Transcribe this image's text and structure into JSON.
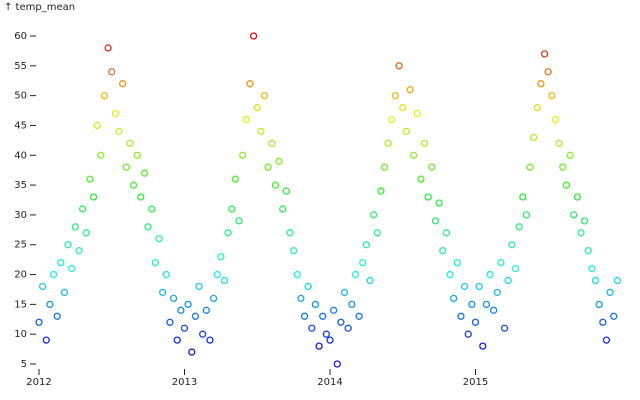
{
  "chart_data": {
    "type": "scatter",
    "title": "↑ temp_mean",
    "x": [
      2012,
      2012.025,
      2012.05,
      2012.075,
      2012.1,
      2012.125,
      2012.15,
      2012.175,
      2012.2,
      2012.225,
      2012.25,
      2012.275,
      2012.3,
      2012.325,
      2012.35,
      2012.375,
      2012.4,
      2012.425,
      2012.45,
      2012.475,
      2012.5,
      2012.525,
      2012.55,
      2012.575,
      2012.6,
      2012.625,
      2012.65,
      2012.675,
      2012.7,
      2012.725,
      2012.75,
      2012.775,
      2012.8,
      2012.825,
      2012.85,
      2012.875,
      2012.9,
      2012.925,
      2012.95,
      2012.975,
      2013,
      2013.025,
      2013.05,
      2013.075,
      2013.1,
      2013.125,
      2013.15,
      2013.175,
      2013.2,
      2013.225,
      2013.25,
      2013.275,
      2013.3,
      2013.325,
      2013.35,
      2013.375,
      2013.4,
      2013.425,
      2013.45,
      2013.475,
      2013.5,
      2013.525,
      2013.55,
      2013.575,
      2013.6,
      2013.625,
      2013.65,
      2013.675,
      2013.7,
      2013.725,
      2013.75,
      2013.775,
      2013.8,
      2013.825,
      2013.85,
      2013.875,
      2013.9,
      2013.925,
      2013.95,
      2013.975,
      2014,
      2014.025,
      2014.05,
      2014.075,
      2014.1,
      2014.125,
      2014.15,
      2014.175,
      2014.2,
      2014.225,
      2014.25,
      2014.275,
      2014.3,
      2014.325,
      2014.35,
      2014.375,
      2014.4,
      2014.425,
      2014.45,
      2014.475,
      2014.5,
      2014.525,
      2014.55,
      2014.575,
      2014.6,
      2014.625,
      2014.65,
      2014.675,
      2014.7,
      2014.725,
      2014.75,
      2014.775,
      2014.8,
      2014.825,
      2014.85,
      2014.875,
      2014.9,
      2014.925,
      2014.95,
      2014.975,
      2015,
      2015.025,
      2015.05,
      2015.075,
      2015.1,
      2015.125,
      2015.15,
      2015.175,
      2015.2,
      2015.225,
      2015.25,
      2015.275,
      2015.3,
      2015.325,
      2015.35,
      2015.375,
      2015.4,
      2015.425,
      2015.45,
      2015.475,
      2015.5,
      2015.525,
      2015.55,
      2015.575,
      2015.6,
      2015.625,
      2015.65,
      2015.675,
      2015.7,
      2015.725,
      2015.75,
      2015.775,
      2015.8,
      2015.825,
      2015.85,
      2015.875,
      2015.9,
      2015.925,
      2015.95,
      2015.975
    ],
    "values": [
      12,
      18,
      9,
      15,
      20,
      13,
      22,
      17,
      25,
      21,
      28,
      24,
      31,
      27,
      36,
      33,
      45,
      40,
      50,
      58,
      54,
      47,
      44,
      52,
      38,
      42,
      35,
      40,
      33,
      37,
      28,
      31,
      22,
      26,
      17,
      20,
      12,
      16,
      9,
      14,
      11,
      15,
      7,
      13,
      18,
      10,
      14,
      9,
      16,
      20,
      23,
      19,
      27,
      31,
      36,
      29,
      40,
      46,
      52,
      60,
      48,
      44,
      50,
      38,
      42,
      35,
      39,
      31,
      34,
      27,
      24,
      20,
      16,
      13,
      18,
      11,
      15,
      8,
      13,
      10,
      9,
      14,
      5,
      12,
      17,
      11,
      15,
      20,
      13,
      22,
      25,
      19,
      30,
      27,
      34,
      38,
      42,
      46,
      50,
      55,
      48,
      44,
      51,
      40,
      47,
      36,
      42,
      33,
      38,
      29,
      32,
      24,
      27,
      20,
      16,
      22,
      13,
      18,
      10,
      15,
      12,
      18,
      8,
      15,
      20,
      14,
      17,
      22,
      11,
      19,
      25,
      21,
      28,
      33,
      30,
      38,
      43,
      48,
      52,
      57,
      54,
      50,
      46,
      42,
      38,
      35,
      40,
      30,
      33,
      27,
      29,
      24,
      21,
      19,
      15,
      12,
      9,
      17,
      13,
      19
    ],
    "colormap": "rainbow",
    "xlim": [
      2012,
      2016
    ],
    "xticks": [
      2012,
      2013,
      2014,
      2015
    ],
    "ylim": [
      5,
      60
    ],
    "yticks": [
      5,
      10,
      15,
      20,
      25,
      30,
      35,
      40,
      45,
      50,
      55,
      60
    ]
  }
}
